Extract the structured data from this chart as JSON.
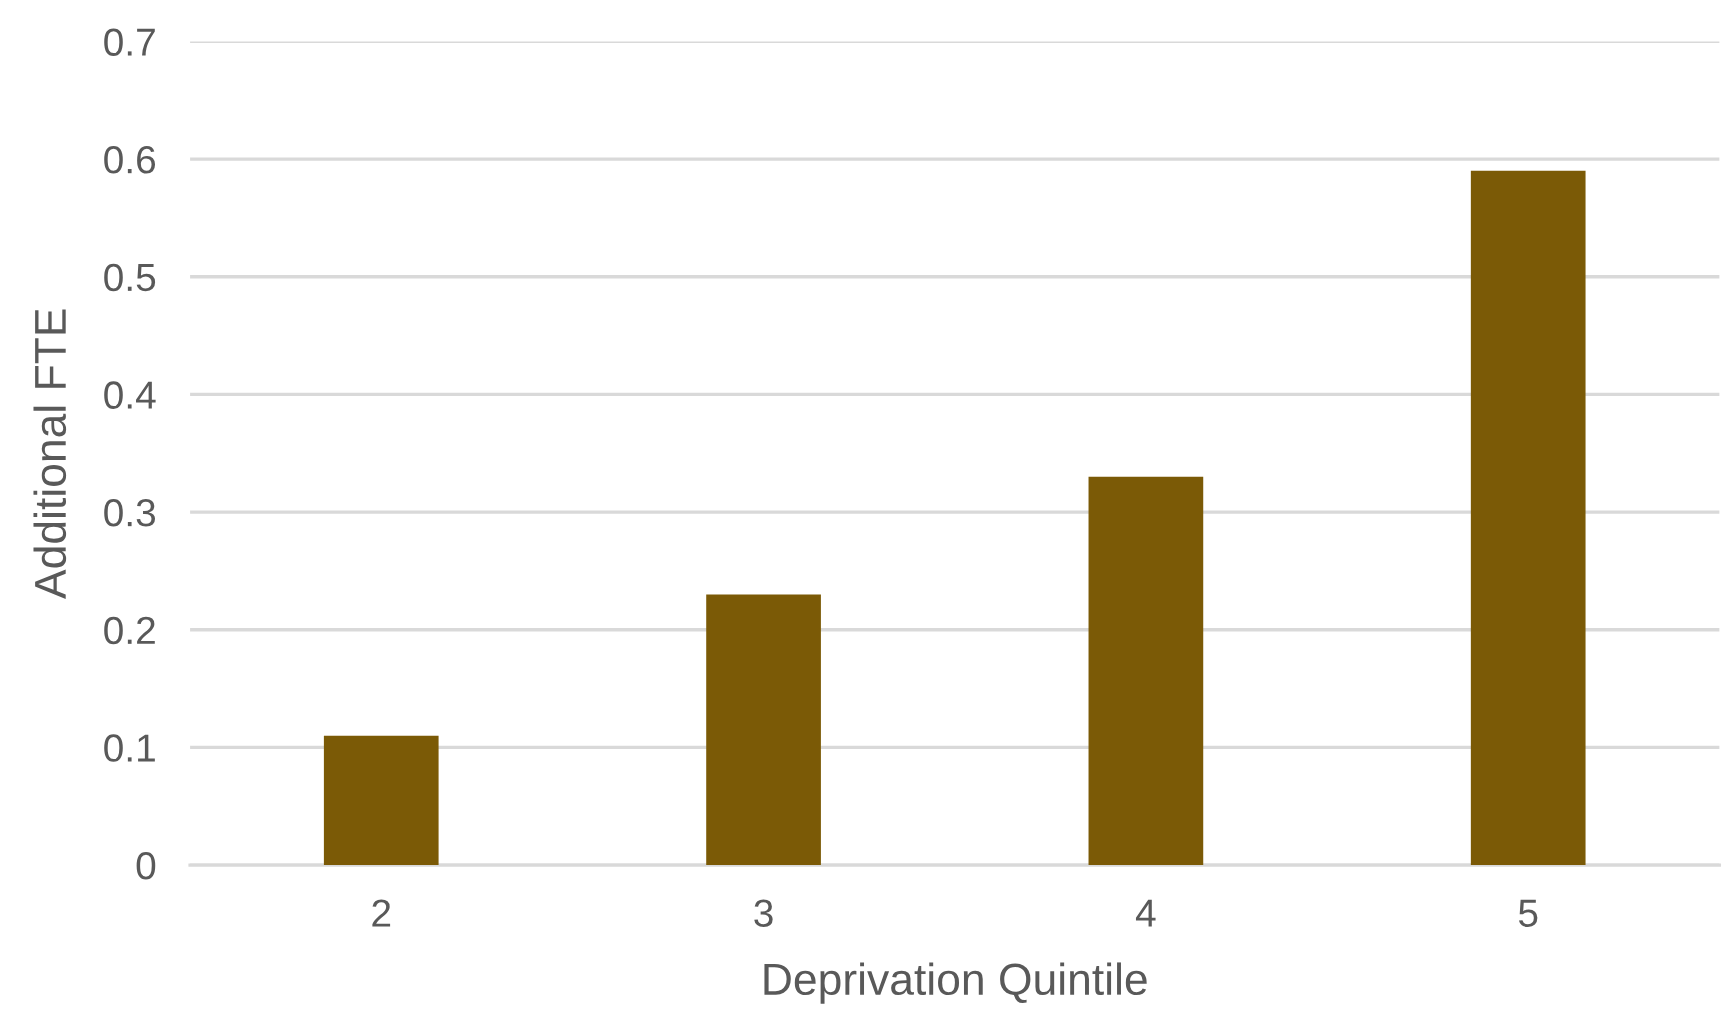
{
  "chart_data": {
    "type": "bar",
    "xlabel": "Deprivation Quintile",
    "ylabel": "Additional FTE",
    "categories": [
      "2",
      "3",
      "4",
      "5"
    ],
    "values": [
      0.11,
      0.23,
      0.33,
      0.59
    ],
    "color": "#7b5a06",
    "ylim": [
      0,
      0.7
    ],
    "yticks": [
      0,
      0.1,
      0.2,
      0.3,
      0.4,
      0.5,
      0.6,
      0.7
    ],
    "grid": "y",
    "legend": false
  }
}
